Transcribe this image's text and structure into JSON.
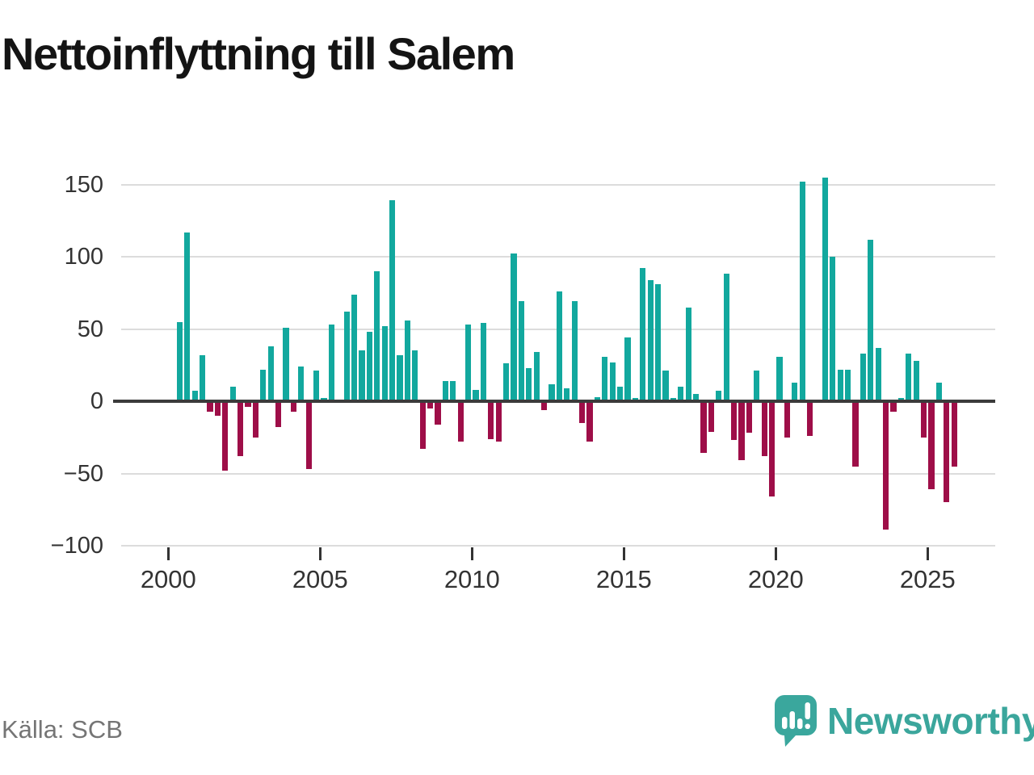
{
  "title": "Nettoinflyttning till Salem",
  "source": "Källa: SCB",
  "branding": {
    "logo_text": "Newsworthy",
    "logo_icon": "newsworthy-bubble-chart-icon"
  },
  "colors": {
    "positive": "#12a89e",
    "negative": "#9e0e48",
    "grid": "#dcdcdc",
    "zero_line": "#3b3b3b",
    "axis_text": "#333333",
    "source_text": "#757575",
    "brand_teal": "#3aa79d"
  },
  "chart_data": {
    "type": "bar",
    "title": "Nettoinflyttning till Salem",
    "xlabel": "",
    "ylabel": "",
    "ylim": [
      -100,
      160
    ],
    "grid": true,
    "legend": false,
    "y_ticks": [
      150,
      100,
      50,
      0,
      -50,
      -100
    ],
    "y_tick_labels": [
      "150",
      "100",
      "50",
      "0",
      "−50",
      "−100"
    ],
    "x_tick_years": [
      2000,
      2005,
      2010,
      2015,
      2020,
      2025
    ],
    "x_tick_labels": [
      "2000",
      "2005",
      "2010",
      "2015",
      "2020",
      "2025"
    ],
    "x": [
      "2000 Q2",
      "2000 Q3",
      "2000 Q4",
      "2001 Q1",
      "2001 Q2",
      "2001 Q3",
      "2001 Q4",
      "2002 Q1",
      "2002 Q2",
      "2002 Q3",
      "2002 Q4",
      "2003 Q1",
      "2003 Q2",
      "2003 Q3",
      "2003 Q4",
      "2004 Q1",
      "2004 Q2",
      "2004 Q3",
      "2004 Q4",
      "2005 Q1",
      "2005 Q2",
      "2005 Q3",
      "2005 Q4",
      "2006 Q1",
      "2006 Q2",
      "2006 Q3",
      "2006 Q4",
      "2007 Q1",
      "2007 Q2",
      "2007 Q3",
      "2007 Q4",
      "2008 Q1",
      "2008 Q2",
      "2008 Q3",
      "2008 Q4",
      "2009 Q1",
      "2009 Q2",
      "2009 Q3",
      "2009 Q4",
      "2010 Q1",
      "2010 Q2",
      "2010 Q3",
      "2010 Q4",
      "2011 Q1",
      "2011 Q2",
      "2011 Q3",
      "2011 Q4",
      "2012 Q1",
      "2012 Q2",
      "2012 Q3",
      "2012 Q4",
      "2013 Q1",
      "2013 Q2",
      "2013 Q3",
      "2013 Q4",
      "2014 Q1",
      "2014 Q2",
      "2014 Q3",
      "2014 Q4",
      "2015 Q1",
      "2015 Q2",
      "2015 Q3",
      "2015 Q4",
      "2016 Q1",
      "2016 Q2",
      "2016 Q3",
      "2016 Q4",
      "2017 Q1",
      "2017 Q2",
      "2017 Q3",
      "2017 Q4",
      "2018 Q1",
      "2018 Q2",
      "2018 Q3",
      "2018 Q4",
      "2019 Q1",
      "2019 Q2",
      "2019 Q3",
      "2019 Q4",
      "2020 Q1",
      "2020 Q2",
      "2020 Q3",
      "2020 Q4",
      "2021 Q1",
      "2021 Q2",
      "2021 Q3",
      "2021 Q4",
      "2022 Q1",
      "2022 Q2",
      "2022 Q3",
      "2022 Q4",
      "2023 Q1",
      "2023 Q2",
      "2023 Q3",
      "2023 Q4",
      "2024 Q1",
      "2024 Q2",
      "2024 Q3",
      "2024 Q4",
      "2025 Q1",
      "2025 Q2",
      "2025 Q3",
      "2025 Q4"
    ],
    "values": [
      55,
      117,
      7,
      32,
      -7,
      -10,
      -48,
      10,
      -38,
      -4,
      -25,
      22,
      38,
      -18,
      51,
      -7,
      24,
      -47,
      21,
      2,
      53,
      0,
      62,
      74,
      35,
      48,
      90,
      52,
      139,
      32,
      56,
      35,
      -33,
      -5,
      -16,
      14,
      14,
      -28,
      53,
      8,
      54,
      -26,
      -28,
      26,
      102,
      69,
      23,
      34,
      -6,
      12,
      76,
      9,
      69,
      -15,
      -28,
      3,
      31,
      27,
      10,
      44,
      2,
      92,
      84,
      81,
      21,
      2,
      10,
      65,
      5,
      -36,
      -21,
      7,
      88,
      -27,
      -41,
      -22,
      21,
      -38,
      -66,
      31,
      -25,
      13,
      152,
      -24,
      0,
      155,
      100,
      22,
      22,
      -45,
      33,
      112,
      37,
      -89,
      -7,
      2,
      33,
      28,
      -25,
      -61,
      13,
      -70,
      -45
    ]
  }
}
